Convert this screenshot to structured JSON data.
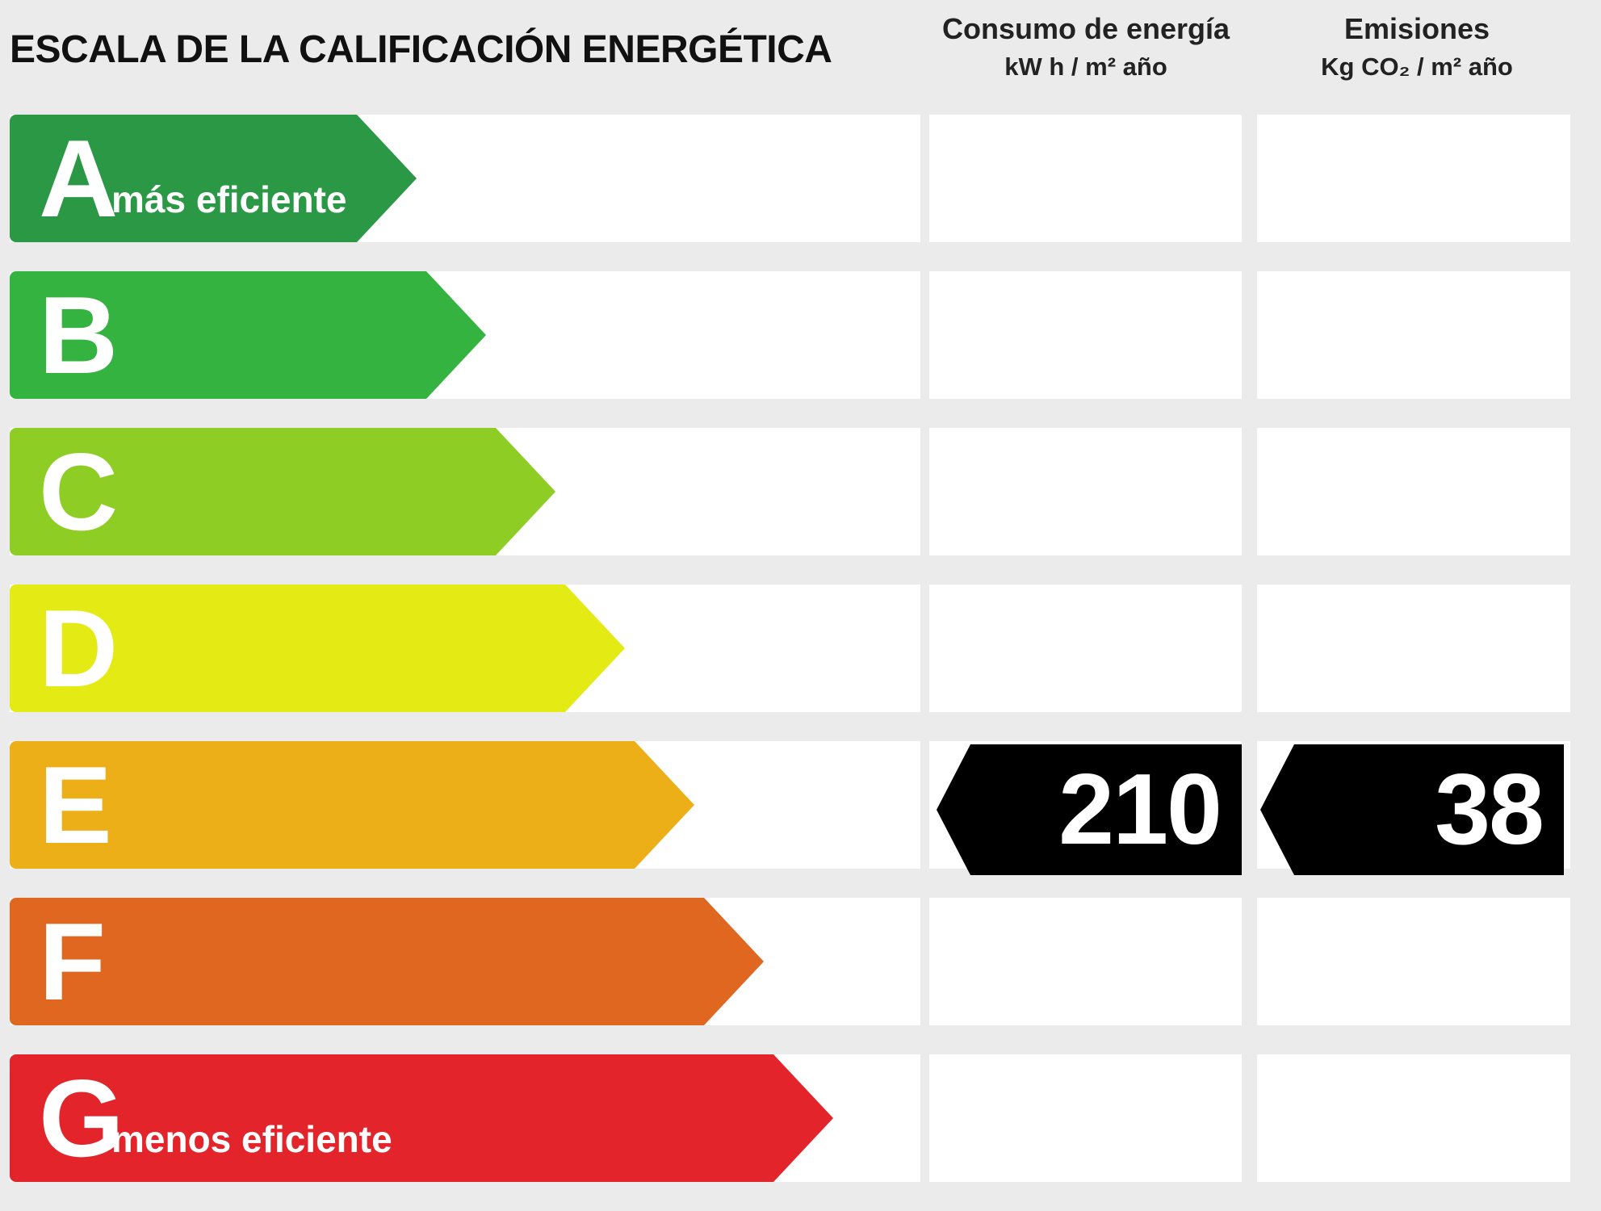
{
  "title": "ESCALA DE LA CALIFICACIÓN ENERGÉTICA",
  "columns": {
    "energy": {
      "heading": "Consumo de energía",
      "unit": "kW h / m² año"
    },
    "emissions": {
      "heading": "Emisiones",
      "unit": "Kg CO₂ / m² año"
    }
  },
  "classes": [
    {
      "letter": "A",
      "sublabel": "más eficiente",
      "color": "#2a9845"
    },
    {
      "letter": "B",
      "sublabel": "",
      "color": "#35b340"
    },
    {
      "letter": "C",
      "sublabel": "",
      "color": "#8ecd24"
    },
    {
      "letter": "D",
      "sublabel": "",
      "color": "#e4ea14"
    },
    {
      "letter": "E",
      "sublabel": "",
      "color": "#ecaf17"
    },
    {
      "letter": "F",
      "sublabel": "",
      "color": "#e0671f"
    },
    {
      "letter": "G",
      "sublabel": "menos eficiente",
      "color": "#e3242a"
    }
  ],
  "rating": {
    "class": "E",
    "energy_value": "210",
    "emissions_value": "38",
    "marker_color": "#000000"
  }
}
